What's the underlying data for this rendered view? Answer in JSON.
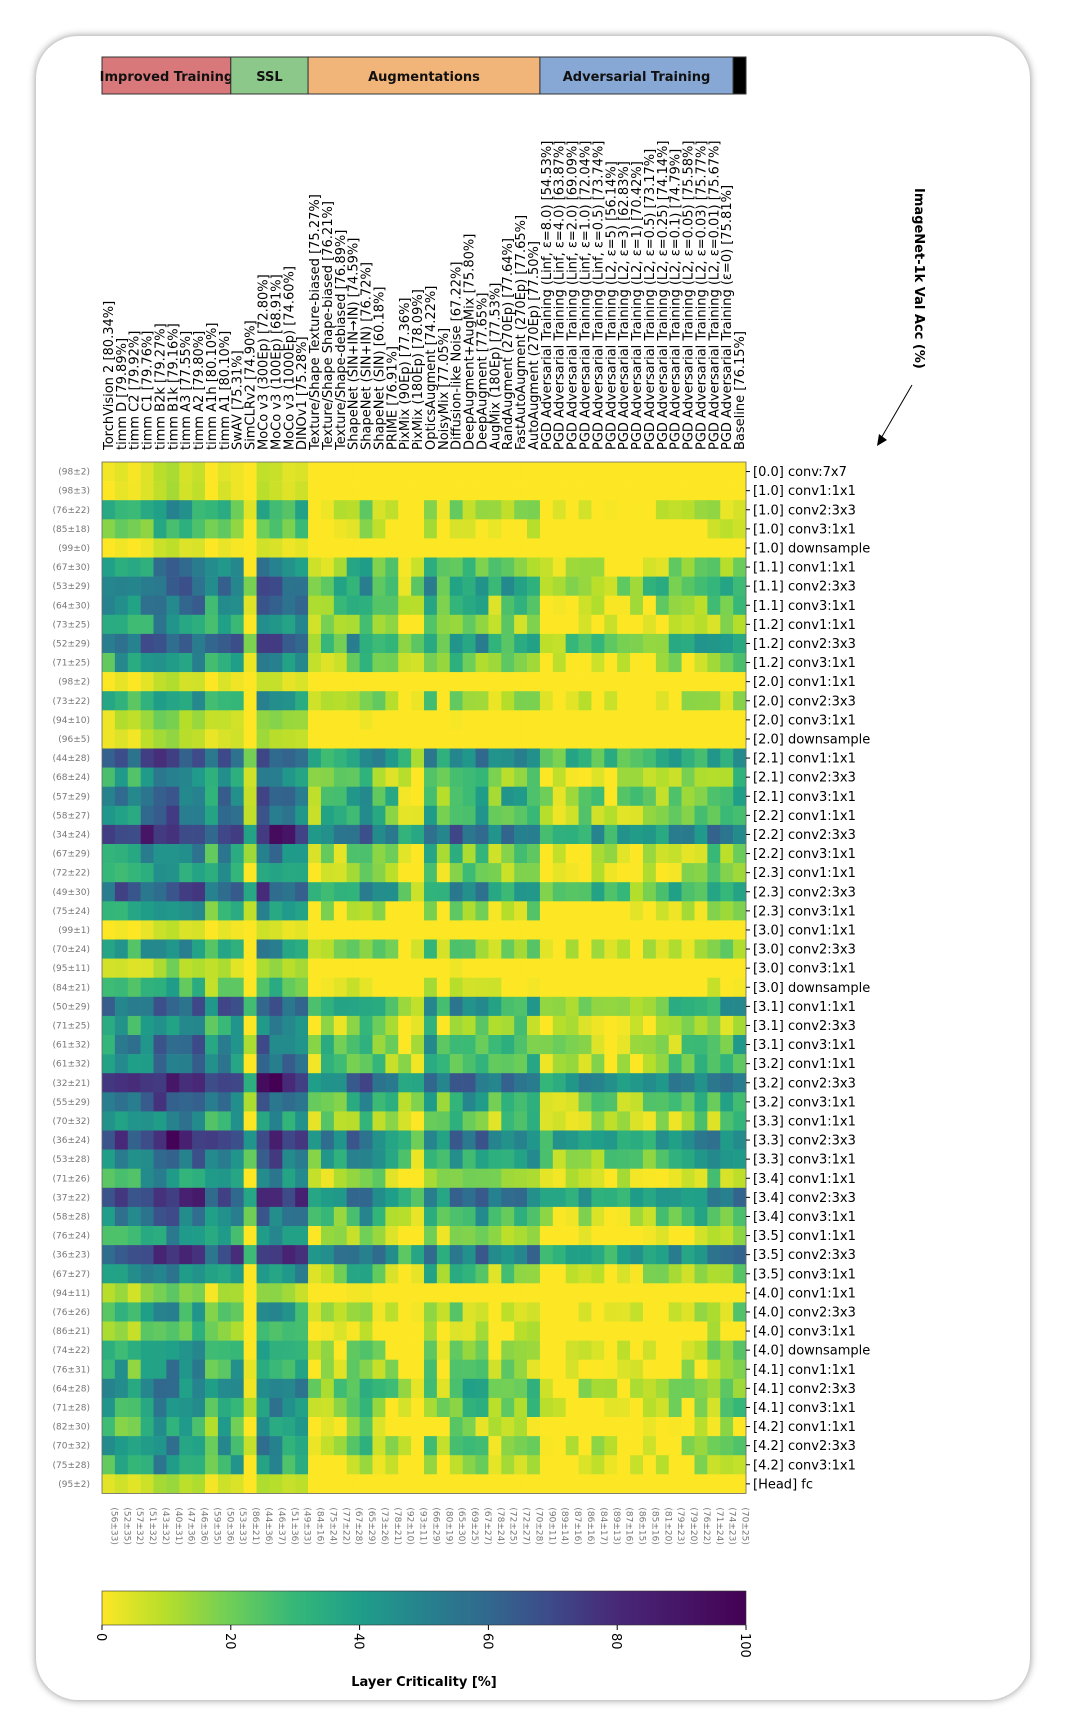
{
  "chart_data": {
    "type": "heatmap",
    "colorbar": {
      "label": "Layer Criticality [%]",
      "ticks": [
        0,
        20,
        40,
        60,
        80,
        100
      ],
      "min": 0,
      "max": 100,
      "colormap": "viridis_r"
    },
    "accuracy_axis_label": "ImageNet-1k Val Acc (%)",
    "groups": [
      {
        "name": "Improved Training",
        "span": 10,
        "color": "#d9787a"
      },
      {
        "name": "SSL",
        "span": 6,
        "color": "#8cc88a"
      },
      {
        "name": "Augmentations",
        "span": 18,
        "color": "#f2b579"
      },
      {
        "name": "Adversarial Training",
        "span": 15,
        "color": "#87a8d4"
      },
      {
        "name": "",
        "span": 1,
        "color": "#000000"
      }
    ],
    "models": [
      "TorchVision 2 [80.34%]",
      "timm D [79.89%]",
      "timm C2 [79.92%]",
      "timm C1 [79.76%]",
      "timm B2k [79.27%]",
      "timm B1k [79.16%]",
      "timm A3 [77.55%]",
      "timm A2 [79.80%]",
      "timm A1h [80.10%]",
      "timm A1 [80.10%]",
      "SwAV [75.31%]",
      "SimCLRv2 [74.90%]",
      "MoCo v3 (300Ep) [72.80%]",
      "MoCo v3 (100Ep) [68.91%]",
      "MoCo v3 (1000Ep) [74.60%]",
      "DINOv1 [75.28%]",
      "Texture/Shape Texture-biased [75.27%]",
      "Texture/Shape Shape-biased [76.21%]",
      "Texture/Shape-debiased [76.89%]",
      "ShapeNet (SIN+IN→IN) [74.59%]",
      "ShapeNet (SIN+IN) [76.72%]",
      "ShapeNet (SIN) [60.18%]",
      "PRIME [76.91%]",
      "PixMix (90Ep) [77.36%]",
      "PixMix (180Ep) [78.09%]",
      "OpticsAugment [74.22%]",
      "NoisyMix [77.05%]",
      "Diffusion-like Noise [67.22%]",
      "DeepAugment+AugMix [75.80%]",
      "DeepAugment [77.65%]",
      "AugMix (180Ep) [77.53%]",
      "RandAugment (270Ep) [77.64%]",
      "FastAutoAugment (270Ep) [77.65%]",
      "AutoAugment (270Ep) [77.50%]",
      "PGD Adversarial Training (Linf, ε=8.0) [54.53%]",
      "PGD Adversarial Training (Linf, ε=4.0) [63.87%]",
      "PGD Adversarial Training (Linf, ε=2.0) [69.09%]",
      "PGD Adversarial Training (Linf, ε=1.0) [72.04%]",
      "PGD Adversarial Training (Linf, ε=0.5) [73.74%]",
      "PGD Adversarial Training (L2, ε=5) [56.14%]",
      "PGD Adversarial Training (L2, ε=3) [62.83%]",
      "PGD Adversarial Training (L2, ε=1) [70.42%]",
      "PGD Adversarial Training (L2, ε=0.5) [73.17%]",
      "PGD Adversarial Training (L2, ε=0.25) [74.14%]",
      "PGD Adversarial Training (L2, ε=0.1) [74.79%]",
      "PGD Adversarial Training (L2, ε=0.05) [75.58%]",
      "PGD Adversarial Training (L2, ε=0.03) [75.77%]",
      "PGD Adversarial Training (L2, ε=0.01) [75.67%]",
      "PGD Adversarial Training (ε=0) [75.81%]",
      "Baseline [76.15%]"
    ],
    "layers": [
      "[0.0] conv:7x7",
      "[1.0] conv1:1x1",
      "[1.0] conv2:3x3",
      "[1.0] conv3:1x1",
      "[1.0] downsample",
      "[1.1] conv1:1x1",
      "[1.1] conv2:3x3",
      "[1.1] conv3:1x1",
      "[1.2] conv1:1x1",
      "[1.2] conv2:3x3",
      "[1.2] conv3:1x1",
      "[2.0] conv1:1x1",
      "[2.0] conv2:3x3",
      "[2.0] conv3:1x1",
      "[2.0] downsample",
      "[2.1] conv1:1x1",
      "[2.1] conv2:3x3",
      "[2.1] conv3:1x1",
      "[2.2] conv1:1x1",
      "[2.2] conv2:3x3",
      "[2.2] conv3:1x1",
      "[2.3] conv1:1x1",
      "[2.3] conv2:3x3",
      "[2.3] conv3:1x1",
      "[3.0] conv1:1x1",
      "[3.0] conv2:3x3",
      "[3.0] conv3:1x1",
      "[3.0] downsample",
      "[3.1] conv1:1x1",
      "[3.1] conv2:3x3",
      "[3.1] conv3:1x1",
      "[3.2] conv1:1x1",
      "[3.2] conv2:3x3",
      "[3.2] conv3:1x1",
      "[3.3] conv1:1x1",
      "[3.3] conv2:3x3",
      "[3.3] conv3:1x1",
      "[3.4] conv1:1x1",
      "[3.4] conv2:3x3",
      "[3.4] conv3:1x1",
      "[3.5] conv1:1x1",
      "[3.5] conv2:3x3",
      "[3.5] conv3:1x1",
      "[4.0] conv1:1x1",
      "[4.0] conv2:3x3",
      "[4.0] conv3:1x1",
      "[4.0] downsample",
      "[4.1] conv1:1x1",
      "[4.1] conv2:3x3",
      "[4.1] conv3:1x1",
      "[4.2] conv1:1x1",
      "[4.2] conv2:3x3",
      "[4.2] conv3:1x1",
      "[Head] fc"
    ],
    "row_stats": [
      "(98±2)",
      "(98±3)",
      "(76±22)",
      "(85±18)",
      "(99±0)",
      "(67±30)",
      "(53±29)",
      "(64±30)",
      "(73±25)",
      "(52±29)",
      "(71±25)",
      "(98±2)",
      "(73±22)",
      "(94±10)",
      "(96±5)",
      "(44±28)",
      "(68±24)",
      "(57±29)",
      "(58±27)",
      "(34±24)",
      "(67±29)",
      "(72±22)",
      "(49±30)",
      "(75±24)",
      "(99±1)",
      "(70±24)",
      "(95±11)",
      "(84±21)",
      "(50±29)",
      "(71±25)",
      "(61±32)",
      "(61±32)",
      "(32±21)",
      "(55±29)",
      "(70±32)",
      "(36±24)",
      "(53±28)",
      "(71±26)",
      "(37±22)",
      "(58±28)",
      "(76±24)",
      "(36±23)",
      "(67±27)",
      "(94±11)",
      "(76±26)",
      "(86±21)",
      "(74±22)",
      "(76±31)",
      "(64±28)",
      "(71±28)",
      "(82±30)",
      "(70±32)",
      "(75±28)",
      "(95±2)"
    ],
    "col_stats": [
      "(56±33)",
      "(52±35)",
      "(57±32)",
      "(51±32)",
      "(43±32)",
      "(40±31)",
      "(47±36)",
      "(46±36)",
      "(59±35)",
      "(50±36)",
      "(53±33)",
      "(86±21)",
      "(44±36)",
      "(46±37)",
      "(51±36)",
      "(49±33)",
      "(84±16)",
      "(75±24)",
      "(77±22)",
      "(67±28)",
      "(65±29)",
      "(73±26)",
      "(78±21)",
      "(92±10)",
      "(93±11)",
      "(66±29)",
      "(80±19)",
      "(65±30)",
      "(69±25)",
      "(67±27)",
      "(78±24)",
      "(72±25)",
      "(72±27)",
      "(70±28)",
      "(90±11)",
      "(89±14)",
      "(87±16)",
      "(86±16)",
      "(84±17)",
      "(89±13)",
      "(87±16)",
      "(86±15)",
      "(85±16)",
      "(81±20)",
      "(79±23)",
      "(79±20)",
      "(76±22)",
      "(71±24)",
      "(74±23)",
      "(70±25)"
    ]
  }
}
